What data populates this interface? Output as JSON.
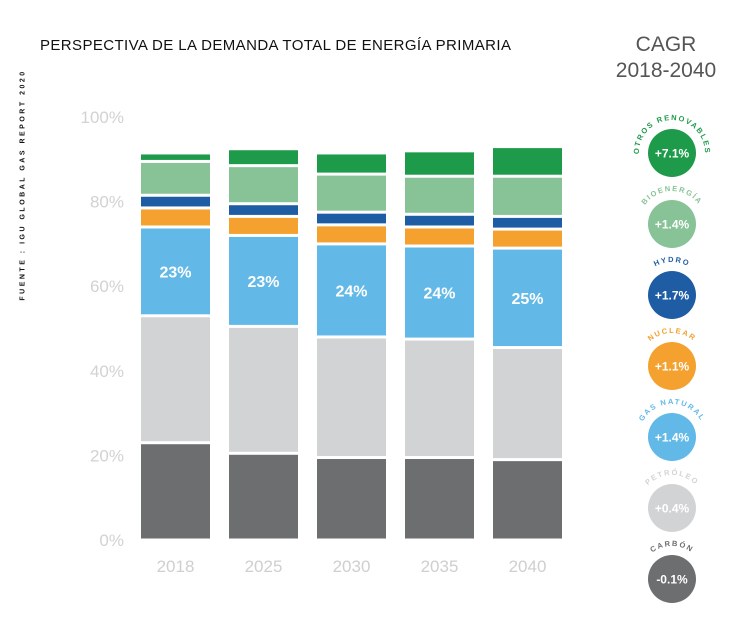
{
  "title": "PERSPECTIVA DE LA DEMANDA TOTAL DE ENERGÍA PRIMARIA",
  "cagr_header": {
    "line1": "CAGR",
    "line2": "2018-2040"
  },
  "source": "FUENTE : IGU GLOBAL GAS REPORT 2020",
  "chart_data": {
    "type": "bar",
    "stacked": true,
    "title": "PERSPECTIVA DE LA DEMANDA TOTAL DE ENERGÍA PRIMARIA",
    "categories": [
      "2018",
      "2025",
      "2030",
      "2035",
      "2040"
    ],
    "ylim": [
      0,
      100
    ],
    "yticks": [
      0,
      20,
      40,
      60,
      80,
      100
    ],
    "ytick_labels": [
      "0%",
      "20%",
      "40%",
      "60%",
      "80%",
      "100%"
    ],
    "series": [
      {
        "name": "Carbón",
        "color": "#6d6e70",
        "values": [
          23,
          20.5,
          19.5,
          19.5,
          19
        ]
      },
      {
        "name": "Petróleo",
        "color": "#d2d3d5",
        "values": [
          30,
          30,
          28.5,
          28,
          26.5
        ]
      },
      {
        "name": "Gas natural",
        "color": "#62b8e7",
        "values": [
          21,
          21.5,
          22,
          22,
          23.5
        ]
      },
      {
        "name": "Nuclear",
        "color": "#f4a12f",
        "values": [
          4.5,
          4.5,
          4.5,
          4.5,
          4.5
        ]
      },
      {
        "name": "Hydro",
        "color": "#1e5da3",
        "values": [
          3,
          3,
          3,
          3,
          3
        ]
      },
      {
        "name": "Bioenergía",
        "color": "#87c396",
        "values": [
          8,
          9,
          9,
          9,
          9.5
        ]
      },
      {
        "name": "Otros renovables",
        "color": "#1e9b4a",
        "values": [
          2,
          4,
          5,
          6,
          7
        ]
      }
    ],
    "data_labels": {
      "series": "Gas natural",
      "labels": [
        "23%",
        "23%",
        "24%",
        "24%",
        "25%"
      ]
    }
  },
  "cagr": [
    {
      "name": "OTROS RENOVABLES",
      "value": "+7.1%",
      "color": "#1e9b4a"
    },
    {
      "name": "BIOENERGÍA",
      "value": "+1.4%",
      "color": "#87c396"
    },
    {
      "name": "HYDRO",
      "value": "+1.7%",
      "color": "#1e5da3"
    },
    {
      "name": "NUCLEAR",
      "value": "+1.1%",
      "color": "#f4a12f"
    },
    {
      "name": "GAS NATURAL",
      "value": "+1.4%",
      "color": "#62b8e7"
    },
    {
      "name": "PETRÓLEO",
      "value": "+0.4%",
      "color": "#d2d3d5"
    },
    {
      "name": "CARBÓN",
      "value": "-0.1%",
      "color": "#6d6e70"
    }
  ]
}
